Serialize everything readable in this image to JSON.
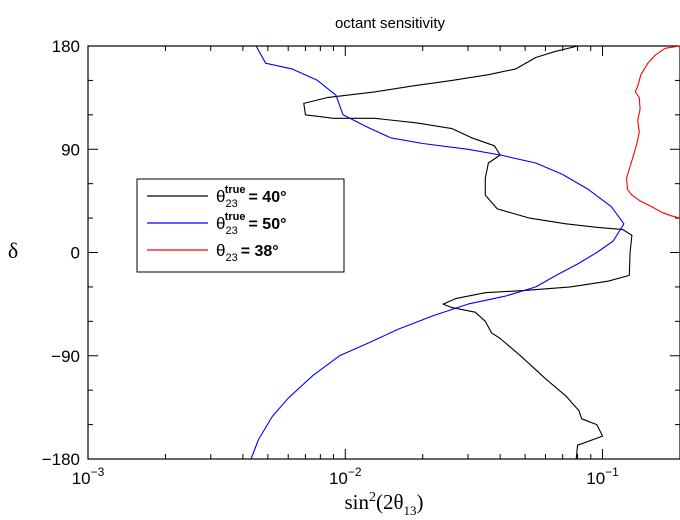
{
  "chart_data": {
    "type": "line",
    "title": "octant sensitivity",
    "xlabel": "sin²(2θ₁₃)",
    "xlabel_parts": {
      "base": "sin",
      "sup": "2",
      "open": "(2θ",
      "sub": "13",
      "close": ")"
    },
    "ylabel": "δ",
    "xscale": "log",
    "xlim": [
      0.001,
      0.2
    ],
    "ylim": [
      -180,
      180
    ],
    "x_ticks": [
      {
        "base": "10",
        "exp": "−3",
        "value": 0.001
      },
      {
        "base": "10",
        "exp": "−2",
        "value": 0.01
      },
      {
        "base": "10",
        "exp": "−1",
        "value": 0.1
      }
    ],
    "y_ticks": [
      {
        "label": "180",
        "value": 180
      },
      {
        "label": "90",
        "value": 90
      },
      {
        "label": "0",
        "value": 0
      },
      {
        "label": "−90",
        "value": -90
      },
      {
        "label": "−180",
        "value": -180
      }
    ],
    "grid": false,
    "legend_position": "middle-left",
    "series": [
      {
        "legend": {
          "sym": "θ",
          "sub": "23",
          "sup": "true",
          "value": "= 40°"
        },
        "color": "#000000",
        "points": [
          [
            0.08,
            180
          ],
          [
            0.065,
            175
          ],
          [
            0.055,
            170
          ],
          [
            0.046,
            160
          ],
          [
            0.036,
            155
          ],
          [
            0.026,
            150
          ],
          [
            0.018,
            145
          ],
          [
            0.013,
            140
          ],
          [
            0.0085,
            135
          ],
          [
            0.0069,
            130
          ],
          [
            0.007,
            120
          ],
          [
            0.009,
            117
          ],
          [
            0.013,
            117
          ],
          [
            0.019,
            113
          ],
          [
            0.026,
            108
          ],
          [
            0.031,
            100
          ],
          [
            0.038,
            93
          ],
          [
            0.04,
            85
          ],
          [
            0.036,
            78
          ],
          [
            0.035,
            65
          ],
          [
            0.035,
            50
          ],
          [
            0.039,
            38
          ],
          [
            0.052,
            30
          ],
          [
            0.072,
            25
          ],
          [
            0.095,
            22
          ],
          [
            0.12,
            20
          ],
          [
            0.13,
            15
          ],
          [
            0.128,
            0
          ],
          [
            0.127,
            -20
          ],
          [
            0.105,
            -25
          ],
          [
            0.075,
            -30
          ],
          [
            0.05,
            -33
          ],
          [
            0.035,
            -35
          ],
          [
            0.027,
            -40
          ],
          [
            0.024,
            -45
          ],
          [
            0.026,
            -48
          ],
          [
            0.032,
            -52
          ],
          [
            0.035,
            -60
          ],
          [
            0.037,
            -70
          ],
          [
            0.04,
            -75
          ],
          [
            0.048,
            -90
          ],
          [
            0.06,
            -110
          ],
          [
            0.072,
            -125
          ],
          [
            0.081,
            -138
          ],
          [
            0.083,
            -145
          ],
          [
            0.095,
            -150
          ],
          [
            0.1,
            -160
          ],
          [
            0.08,
            -168
          ],
          [
            0.079,
            -180
          ]
        ]
      },
      {
        "legend": {
          "sym": "θ",
          "sub": "23",
          "sup": "true",
          "value": "= 50°"
        },
        "color": "#0000ff",
        "points": [
          [
            0.0045,
            180
          ],
          [
            0.0049,
            165
          ],
          [
            0.0062,
            160
          ],
          [
            0.0078,
            150
          ],
          [
            0.0092,
            137
          ],
          [
            0.0098,
            120
          ],
          [
            0.012,
            110
          ],
          [
            0.015,
            100
          ],
          [
            0.02,
            95
          ],
          [
            0.03,
            90
          ],
          [
            0.04,
            85
          ],
          [
            0.055,
            78
          ],
          [
            0.07,
            68
          ],
          [
            0.088,
            55
          ],
          [
            0.108,
            40
          ],
          [
            0.121,
            25
          ],
          [
            0.11,
            10
          ],
          [
            0.095,
            0
          ],
          [
            0.08,
            -10
          ],
          [
            0.066,
            -20
          ],
          [
            0.055,
            -30
          ],
          [
            0.042,
            -38
          ],
          [
            0.03,
            -45
          ],
          [
            0.022,
            -55
          ],
          [
            0.016,
            -67
          ],
          [
            0.012,
            -80
          ],
          [
            0.0095,
            -90
          ],
          [
            0.0075,
            -107
          ],
          [
            0.006,
            -127
          ],
          [
            0.0052,
            -143
          ],
          [
            0.0046,
            -163
          ],
          [
            0.0043,
            -180
          ]
        ]
      },
      {
        "legend": {
          "sym": "θ",
          "sub": "23",
          "sup": "",
          "value": "= 38°"
        },
        "color": "#ff0000",
        "points": [
          [
            0.2,
            180
          ],
          [
            0.175,
            178
          ],
          [
            0.16,
            172
          ],
          [
            0.15,
            165
          ],
          [
            0.141,
            155
          ],
          [
            0.137,
            145
          ],
          [
            0.134,
            140
          ],
          [
            0.139,
            135
          ],
          [
            0.14,
            125
          ],
          [
            0.137,
            115
          ],
          [
            0.139,
            105
          ],
          [
            0.136,
            95
          ],
          [
            0.132,
            85
          ],
          [
            0.128,
            75
          ],
          [
            0.124,
            65
          ],
          [
            0.125,
            55
          ],
          [
            0.13,
            50
          ],
          [
            0.14,
            45
          ],
          [
            0.155,
            40
          ],
          [
            0.17,
            35
          ],
          [
            0.185,
            32
          ],
          [
            0.2,
            30
          ]
        ]
      }
    ]
  }
}
